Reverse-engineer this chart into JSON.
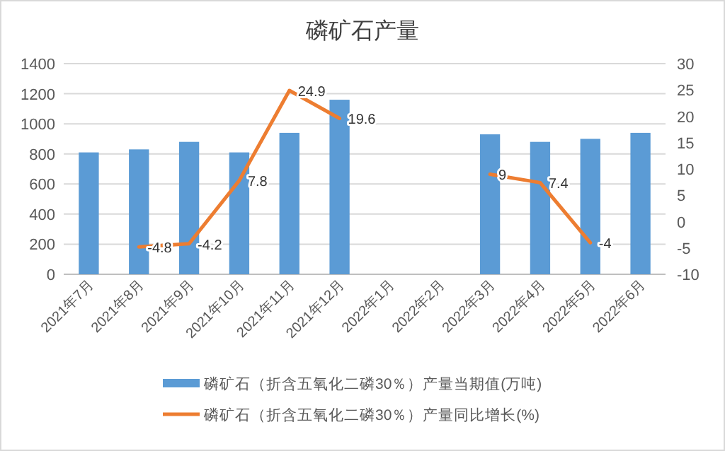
{
  "chart_data": {
    "type": "bar",
    "title": "磷矿石产量",
    "categories": [
      "2021年7月",
      "2021年8月",
      "2021年9月",
      "2021年10月",
      "2021年11月",
      "2021年12月",
      "2022年1月",
      "2022年2月",
      "2022年3月",
      "2022年4月",
      "2022年5月",
      "2022年6月"
    ],
    "series": [
      {
        "name": "磷矿石（折含五氧化二磷30％）产量当期值(万吨)",
        "color": "#5b9bd5",
        "values": [
          810,
          830,
          880,
          810,
          940,
          1160,
          null,
          null,
          930,
          880,
          900,
          940
        ]
      },
      {
        "name": "磷矿石（折含五氧化二磷30％）产量同比增长(%)",
        "type": "line",
        "axis": "y2",
        "color": "#ed7d31",
        "values": [
          null,
          -4.8,
          -4.2,
          7.8,
          24.9,
          19.6,
          null,
          null,
          9,
          7.4,
          -4,
          null
        ],
        "value_labels": [
          null,
          "-4.8",
          "-4.2",
          "7.8",
          "24.9",
          "19.6",
          null,
          null,
          "9",
          "7.4",
          "-4",
          null
        ]
      }
    ],
    "ylim": [
      0,
      1400
    ],
    "yticks": [
      0,
      200,
      400,
      600,
      800,
      1000,
      1200,
      1400
    ],
    "y2lim": [
      -10,
      30
    ],
    "y2ticks": [
      -10,
      -5,
      0,
      5,
      10,
      15,
      20,
      25,
      30
    ],
    "grid": "y",
    "legend": "bottom"
  }
}
